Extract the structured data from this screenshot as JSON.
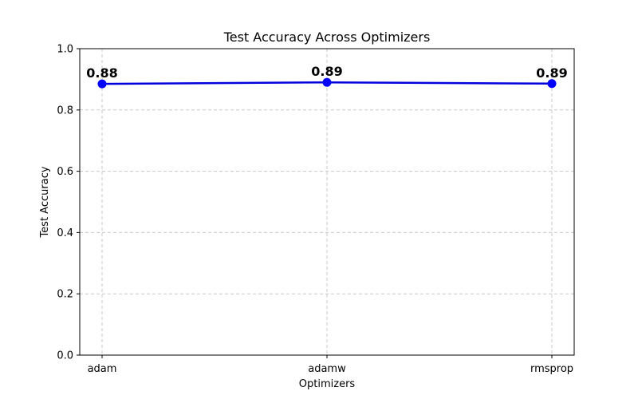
{
  "chart_data": {
    "type": "line",
    "title": "Test Accuracy Across Optimizers",
    "xlabel": "Optimizers",
    "ylabel": "Test Accuracy",
    "categories": [
      "adam",
      "adamw",
      "rmsprop"
    ],
    "values": [
      0.885,
      0.89,
      0.886
    ],
    "data_labels": [
      "0.88",
      "0.89",
      "0.89"
    ],
    "ylim": [
      0,
      1.0
    ],
    "yticks": [
      0.0,
      0.2,
      0.4,
      0.6,
      0.8,
      1.0
    ],
    "ytick_labels": [
      "0.0",
      "0.2",
      "0.4",
      "0.6",
      "0.8",
      "1.0"
    ],
    "grid": true,
    "line_color": "#0000dd",
    "marker_color": "#0000ff"
  }
}
